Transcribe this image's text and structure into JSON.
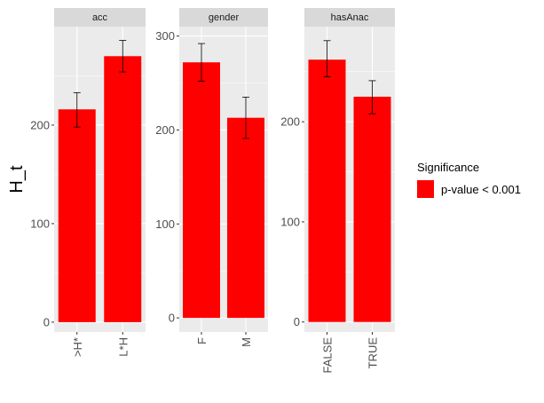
{
  "chart_data": {
    "type": "bar",
    "ylabel": "H_t",
    "bar_color": "#ff0000",
    "panel_bg": "#ebebeb",
    "strip_bg": "#d9d9d9",
    "grid_color": "#ffffff",
    "legend": {
      "title": "Significance",
      "entries": [
        {
          "label": "p-value < 0.001",
          "color": "#ff0000"
        }
      ],
      "position": "right"
    },
    "panels": [
      {
        "title": "acc",
        "categories": [
          ">H*",
          "L*H"
        ],
        "values": [
          216,
          270
        ],
        "error_low": [
          198,
          254
        ],
        "error_high": [
          233,
          286
        ],
        "yticks": [
          0,
          100,
          200
        ],
        "ylim": [
          -10,
          300
        ]
      },
      {
        "title": "gender",
        "categories": [
          "F",
          "M"
        ],
        "values": [
          272,
          213
        ],
        "error_low": [
          252,
          191
        ],
        "error_high": [
          292,
          235
        ],
        "yticks": [
          0,
          100,
          200,
          300
        ],
        "ylim": [
          -15,
          310
        ]
      },
      {
        "title": "hasAnac",
        "categories": [
          "FALSE",
          "TRUE"
        ],
        "values": [
          262,
          225
        ],
        "error_low": [
          245,
          208
        ],
        "error_high": [
          281,
          241
        ],
        "yticks": [
          0,
          100,
          200
        ],
        "ylim": [
          -10,
          295
        ]
      }
    ]
  }
}
